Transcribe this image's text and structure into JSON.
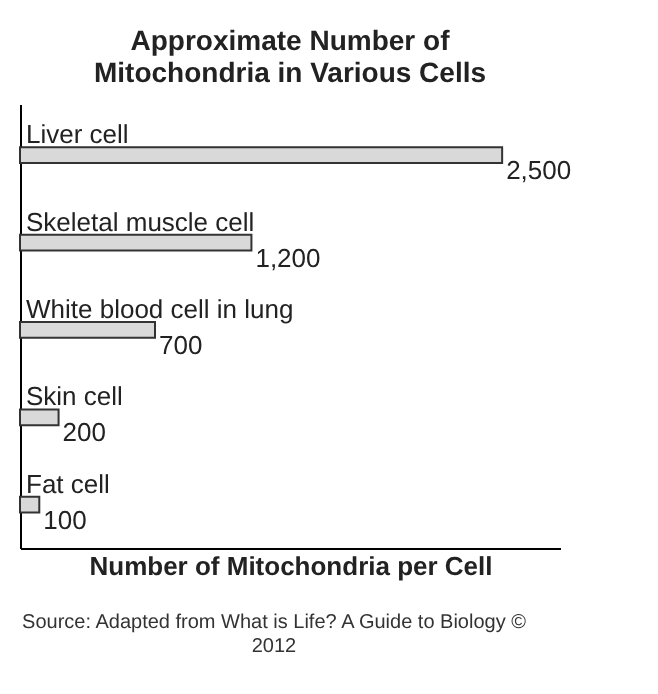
{
  "chart_data": {
    "type": "bar",
    "orientation": "horizontal",
    "title": "Approximate Number of\nMitochondria in Various Cells",
    "xlabel": "Number of Mitochondria per Cell",
    "categories": [
      "Liver cell",
      "Skeletal muscle cell",
      "White blood cell in lung",
      "Skin cell",
      "Fat cell"
    ],
    "values": [
      2500,
      1200,
      700,
      200,
      100
    ],
    "value_labels": [
      "2,500",
      "1,200",
      "700",
      "200",
      "100"
    ],
    "color": "#d9d9d9",
    "grid": false,
    "annotations": [
      "Source: Adapted from What is Life? A Guide to Biology ©\n2012"
    ]
  }
}
